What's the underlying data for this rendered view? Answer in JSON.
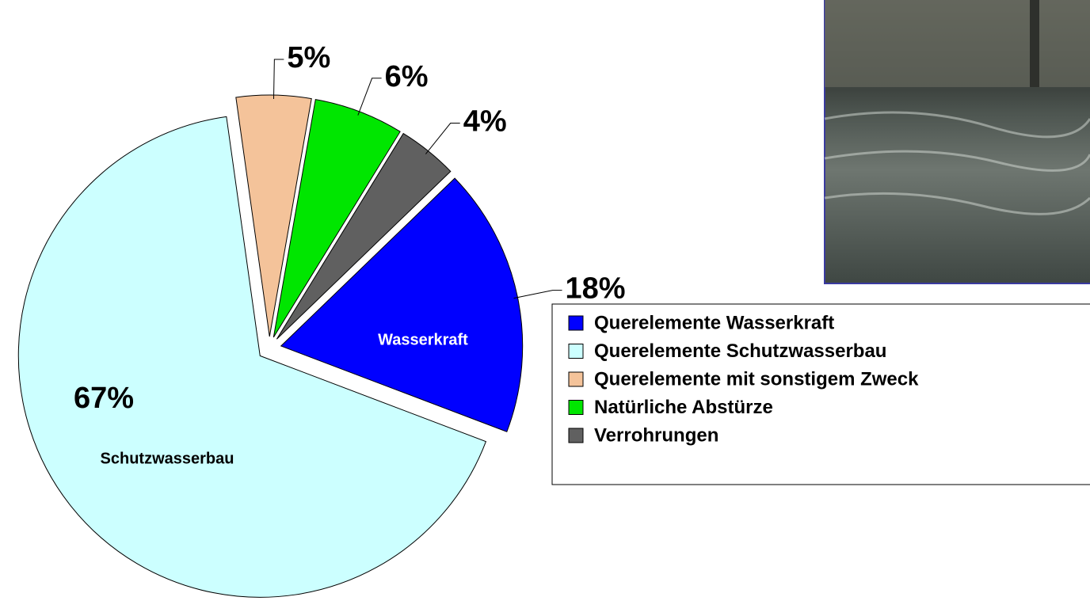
{
  "chart_data": {
    "type": "pie",
    "categories": [
      "Querelemente Wasserkraft",
      "Querelemente Schutzwasserbau",
      "Querelemente mit sonstigem Zweck",
      "Natürliche Abstürze",
      "Verrohrungen"
    ],
    "values": [
      18,
      67,
      5,
      6,
      4
    ],
    "value_labels": [
      "18%",
      "67%",
      "5%",
      "6%",
      "4%"
    ],
    "inner_labels": [
      "Wasserkraft",
      "Schutzwasserbau",
      null,
      null,
      null
    ],
    "colors": [
      "#0000ff",
      "#ccffff",
      "#f4c39a",
      "#00e600",
      "#606060"
    ],
    "legend": "right"
  }
}
